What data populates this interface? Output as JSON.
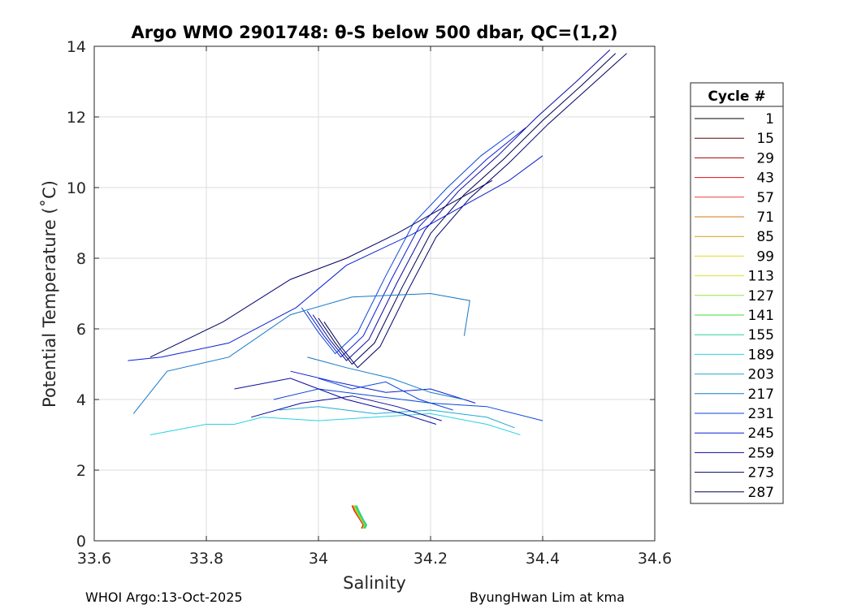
{
  "chart_data": {
    "type": "line",
    "title": "Argo WMO 2901748: θ-S below 500 dbar,  QC=(1,2)",
    "xlabel": "Salinity",
    "ylabel": "Potential Temperature (˚C)",
    "xlim": [
      33.6,
      34.6
    ],
    "ylim": [
      0,
      14
    ],
    "xticks": [
      "33.6",
      "33.8",
      "34",
      "34.2",
      "34.4",
      "34.6"
    ],
    "yticks": [
      "0",
      "2",
      "4",
      "6",
      "8",
      "10",
      "12",
      "14"
    ],
    "grid": true,
    "legend_title": "Cycle #",
    "legend_position": "right",
    "series": [
      {
        "name": "1",
        "color": "#000000"
      },
      {
        "name": "15",
        "color": "#5a0000"
      },
      {
        "name": "29",
        "color": "#a50000"
      },
      {
        "name": "43",
        "color": "#e01010"
      },
      {
        "name": "57",
        "color": "#e83c3c"
      },
      {
        "name": "71",
        "color": "#d77a10"
      },
      {
        "name": "85",
        "color": "#d8a010"
      },
      {
        "name": "99",
        "color": "#e6d81e"
      },
      {
        "name": "113",
        "color": "#d4e632"
      },
      {
        "name": "127",
        "color": "#96e646"
      },
      {
        "name": "141",
        "color": "#3cdc3c"
      },
      {
        "name": "155",
        "color": "#28d2a0"
      },
      {
        "name": "189",
        "color": "#28d2e6"
      },
      {
        "name": "203",
        "color": "#1eaad2"
      },
      {
        "name": "217",
        "color": "#1478c8"
      },
      {
        "name": "231",
        "color": "#0a46dc"
      },
      {
        "name": "245",
        "color": "#0a1ed2"
      },
      {
        "name": "259",
        "color": "#0a0aa0"
      },
      {
        "name": "273",
        "color": "#000064"
      },
      {
        "name": "287",
        "color": "#000050"
      }
    ],
    "profiles": [
      {
        "color": "#000050",
        "s": [
          34.0,
          34.03,
          34.06,
          34.1,
          34.15,
          34.2,
          34.26,
          34.33,
          34.4,
          34.47,
          34.53
        ],
        "t": [
          6.3,
          5.6,
          5.0,
          5.6,
          7.2,
          8.7,
          9.8,
          10.8,
          11.9,
          12.9,
          13.8
        ]
      },
      {
        "color": "#0a0aa0",
        "s": [
          33.99,
          34.02,
          34.05,
          34.09,
          34.14,
          34.19,
          34.25,
          34.32,
          34.39,
          34.46,
          34.52
        ],
        "t": [
          6.4,
          5.7,
          5.1,
          5.7,
          7.3,
          8.8,
          9.9,
          10.9,
          12.0,
          13.0,
          13.9
        ]
      },
      {
        "color": "#000064",
        "s": [
          34.01,
          34.04,
          34.07,
          34.11,
          34.16,
          34.21,
          34.27,
          34.34,
          34.41,
          34.48,
          34.55
        ],
        "t": [
          6.2,
          5.5,
          4.9,
          5.5,
          7.1,
          8.6,
          9.7,
          10.7,
          11.8,
          12.8,
          13.8
        ]
      },
      {
        "color": "#0a1ed2",
        "s": [
          33.98,
          34.01,
          34.04,
          34.08,
          34.13,
          34.18,
          34.24,
          34.3,
          34.37
        ],
        "t": [
          6.5,
          5.8,
          5.2,
          5.8,
          7.4,
          8.9,
          9.9,
          10.8,
          11.7
        ]
      },
      {
        "color": "#0a46dc",
        "s": [
          33.97,
          34.0,
          34.03,
          34.07,
          34.12,
          34.17,
          34.23,
          34.29,
          34.35
        ],
        "t": [
          6.6,
          5.9,
          5.3,
          5.9,
          7.5,
          9.0,
          10.0,
          10.9,
          11.6
        ]
      },
      {
        "color": "#0a1ed2",
        "s": [
          33.66,
          33.72,
          33.84,
          33.96,
          34.05,
          34.17,
          34.26,
          34.34,
          34.4
        ],
        "t": [
          5.1,
          5.2,
          5.6,
          6.6,
          7.8,
          8.7,
          9.5,
          10.2,
          10.9
        ]
      },
      {
        "color": "#000064",
        "s": [
          33.7,
          33.83,
          33.95,
          34.05,
          34.14,
          34.23,
          34.31
        ],
        "t": [
          5.2,
          6.2,
          7.4,
          8.0,
          8.7,
          9.5,
          10.2
        ]
      },
      {
        "color": "#1478c8",
        "s": [
          33.67,
          33.73,
          33.84,
          33.95,
          34.06,
          34.2,
          34.27,
          34.26
        ],
        "t": [
          3.6,
          4.8,
          5.2,
          6.4,
          6.9,
          7.0,
          6.8,
          5.8
        ]
      },
      {
        "color": "#28d2e6",
        "s": [
          33.7,
          33.8,
          33.85,
          33.9,
          34.0,
          34.1,
          34.2,
          34.3,
          34.36
        ],
        "t": [
          3.0,
          3.3,
          3.3,
          3.5,
          3.4,
          3.5,
          3.6,
          3.3,
          3.0
        ]
      },
      {
        "color": "#1eaad2",
        "s": [
          33.93,
          34.0,
          34.1,
          34.2,
          34.3,
          34.35
        ],
        "t": [
          3.7,
          3.8,
          3.6,
          3.7,
          3.5,
          3.2
        ]
      },
      {
        "color": "#0a46dc",
        "s": [
          33.92,
          34.0,
          34.1,
          34.2,
          34.3,
          34.4
        ],
        "t": [
          4.0,
          4.3,
          4.1,
          3.9,
          3.8,
          3.4
        ]
      },
      {
        "color": "#0a0aa0",
        "s": [
          33.85,
          33.95,
          34.05,
          34.15,
          34.21
        ],
        "t": [
          4.3,
          4.6,
          4.0,
          3.6,
          3.3
        ]
      },
      {
        "color": "#0a1ed2",
        "s": [
          33.95,
          34.03,
          34.12,
          34.2,
          34.28
        ],
        "t": [
          4.8,
          4.5,
          4.2,
          4.3,
          3.9
        ]
      },
      {
        "color": "#1478c8",
        "s": [
          33.98,
          34.05,
          34.13,
          34.2,
          34.26
        ],
        "t": [
          5.2,
          4.9,
          4.6,
          4.2,
          4.0
        ]
      },
      {
        "color": "#0a0aa0",
        "s": [
          33.88,
          33.97,
          34.06,
          34.14,
          34.22
        ],
        "t": [
          3.5,
          3.9,
          4.1,
          3.8,
          3.4
        ]
      },
      {
        "color": "#0a46dc",
        "s": [
          34.0,
          34.06,
          34.12,
          34.18,
          34.24
        ],
        "t": [
          4.6,
          4.3,
          4.5,
          4.0,
          3.7
        ]
      }
    ],
    "deep_cluster": {
      "colors": [
        "#e01010",
        "#d8a010",
        "#96e646",
        "#3cdc3c",
        "#28d2a0"
      ],
      "s": [
        34.06,
        34.08
      ],
      "t": [
        0.35,
        1.0
      ]
    }
  },
  "footer": {
    "left": "WHOI Argo:13-Oct-2025",
    "right": "ByungHwan Lim at kma"
  }
}
